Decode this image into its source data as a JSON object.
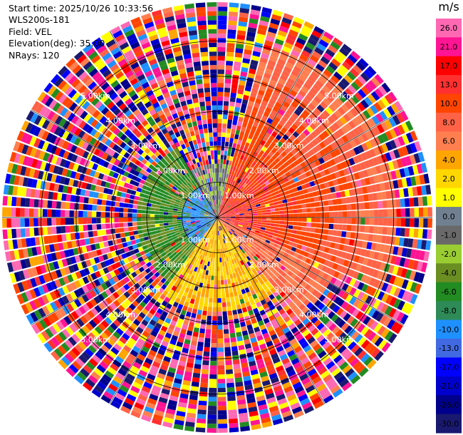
{
  "header": {
    "start_time": "Start time: 2025/10/26 10:33:56",
    "instrument": "WLS200s-181",
    "field": "Field: VEL",
    "elevation": "Elevation(deg): 35.00",
    "nrays": "NRays: 120"
  },
  "colorbar": {
    "unit": "m/s",
    "ticks": [
      "26.0",
      "21.0",
      "17.0",
      "13.0",
      "10.0",
      "8.0",
      "6.0",
      "4.0",
      "2.0",
      "1.0",
      "0.0",
      "-1.0",
      "-2.0",
      "-4.0",
      "-6.0",
      "-8.0",
      "-10.0",
      "-13.0",
      "-17.0",
      "-21.0",
      "-26.0",
      "-30.0"
    ],
    "colors": [
      "#ff69b4",
      "#ff1493",
      "#ff0000",
      "#ff3030",
      "#ff4500",
      "#ff6347",
      "#ff7f50",
      "#ffa500",
      "#ffd700",
      "#ffff00",
      "#708090",
      "#696969",
      "#9acd32",
      "#6b8e23",
      "#228b22",
      "#2e8b57",
      "#1e90ff",
      "#4169e1",
      "#0000ff",
      "#0000cd",
      "#00008b",
      "#191970"
    ]
  },
  "chart_data": {
    "type": "polar-ppi",
    "field": "VEL",
    "unit": "m/s",
    "n_rays": 120,
    "elevation_deg": 35.0,
    "range_max_km": 5.0,
    "range_rings_km": [
      1,
      2,
      3,
      4,
      5
    ],
    "range_labels": [
      "1.00km",
      "2.00km",
      "3.00km",
      "4.00km",
      "5.00km"
    ],
    "velocity_pattern": {
      "near_field_max_km": 2.5,
      "east_quadrant": "positive 6 to 13 m/s",
      "west_quadrant": "negative -2 to -13 m/s",
      "south_quadrant": "positive 2 to 4 m/s",
      "far_field": "noise"
    }
  }
}
